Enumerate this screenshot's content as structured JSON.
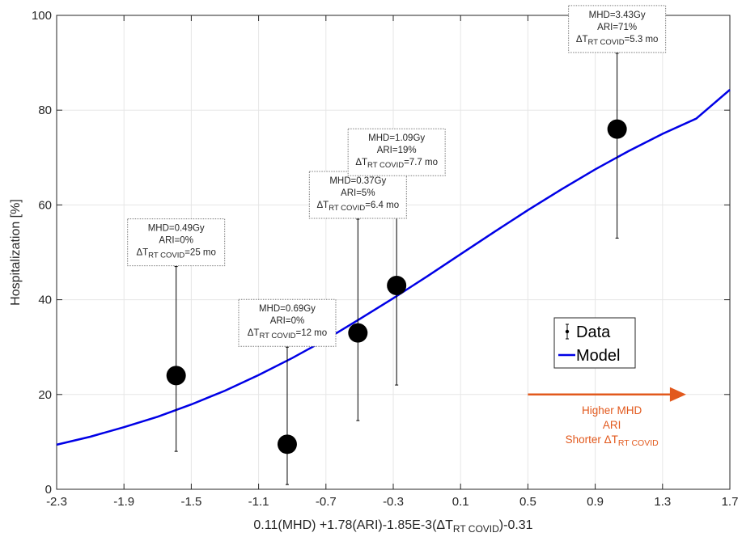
{
  "chart_data": {
    "type": "scatter",
    "xlabel": "0.11(MHD) +1.78(ARI)-1.85E-3(ΔT",
    "xlabel_sub": "RT COVID",
    "xlabel_end": ")-0.31",
    "ylabel": "Hospitalization [%]",
    "xlim": [
      -2.3,
      1.7
    ],
    "ylim": [
      0,
      100
    ],
    "x_ticks": [
      -2.3,
      -1.9,
      -1.5,
      -1.1,
      -0.7,
      -0.3,
      0.1,
      0.5,
      0.9,
      1.3,
      1.7
    ],
    "x_tick_labels": [
      "-2.3",
      "-1.9",
      "-1.5",
      "-1.1",
      "-0.7",
      "-0.3",
      "0.1",
      "0.5",
      "0.9",
      "1.3",
      "1.7"
    ],
    "y_ticks": [
      0,
      20,
      40,
      60,
      80,
      100
    ],
    "y_tick_labels": [
      "0",
      "20",
      "40",
      "60",
      "80",
      "100"
    ],
    "grid": true,
    "series": [
      {
        "name": "Data",
        "type": "scatter-errorbar",
        "color": "#000000",
        "points": [
          {
            "x": -1.59,
            "y": 24,
            "lo": 8,
            "hi": 47
          },
          {
            "x": -0.93,
            "y": 9.5,
            "lo": 1,
            "hi": 30
          },
          {
            "x": -0.51,
            "y": 33,
            "lo": 14.5,
            "hi": 57
          },
          {
            "x": -0.28,
            "y": 43,
            "lo": 22,
            "hi": 66
          },
          {
            "x": 1.03,
            "y": 76,
            "lo": 53,
            "hi": 92
          }
        ]
      },
      {
        "name": "Model",
        "type": "line",
        "color": "#0000e6",
        "x": [
          -2.3,
          -2.1,
          -1.9,
          -1.7,
          -1.5,
          -1.3,
          -1.1,
          -0.9,
          -0.7,
          -0.5,
          -0.3,
          -0.1,
          0.1,
          0.3,
          0.5,
          0.7,
          0.9,
          1.1,
          1.3,
          1.5,
          1.7
        ],
        "y": [
          9.4,
          11.1,
          13.1,
          15.3,
          17.9,
          20.8,
          24.1,
          27.7,
          31.6,
          35.9,
          40.3,
          44.9,
          49.6,
          54.3,
          58.9,
          63.3,
          67.5,
          71.4,
          75.0,
          78.2,
          84.3
        ]
      }
    ],
    "legend": {
      "position": "right-middle",
      "entries": [
        "Data",
        "Model"
      ]
    },
    "annotations": [
      {
        "anchor_x": -1.59,
        "anchor_y": 47,
        "lines": [
          "MHD=0.49Gy",
          "ARI=0%"
        ],
        "dt_value": "=25 mo"
      },
      {
        "anchor_x": -0.93,
        "anchor_y": 30,
        "lines": [
          "MHD=0.69Gy",
          "ARI=0%"
        ],
        "dt_value": "=12 mo"
      },
      {
        "anchor_x": -0.51,
        "anchor_y": 57,
        "lines": [
          "MHD=0.37Gy",
          "ARI=5%"
        ],
        "dt_value": "=6.4 mo"
      },
      {
        "anchor_x": -0.28,
        "anchor_y": 66,
        "lines": [
          "MHD=1.09Gy",
          "ARI=19%"
        ],
        "dt_value": "=7.7 mo"
      },
      {
        "anchor_x": 1.03,
        "anchor_y": 92,
        "lines": [
          "MHD=3.43Gy",
          "ARI=71%"
        ],
        "dt_value": "=5.3 mo"
      }
    ],
    "annotation_dt_prefix": "ΔT",
    "annotation_dt_sub": "RT COVID",
    "arrow": {
      "x_start": 0.5,
      "x_end": 1.44,
      "y": 20,
      "color": "#e2591d",
      "lines": [
        "Higher MHD",
        "ARI"
      ],
      "last_line_prefix": "Shorter ΔT",
      "last_line_sub": "RT COVID"
    }
  }
}
